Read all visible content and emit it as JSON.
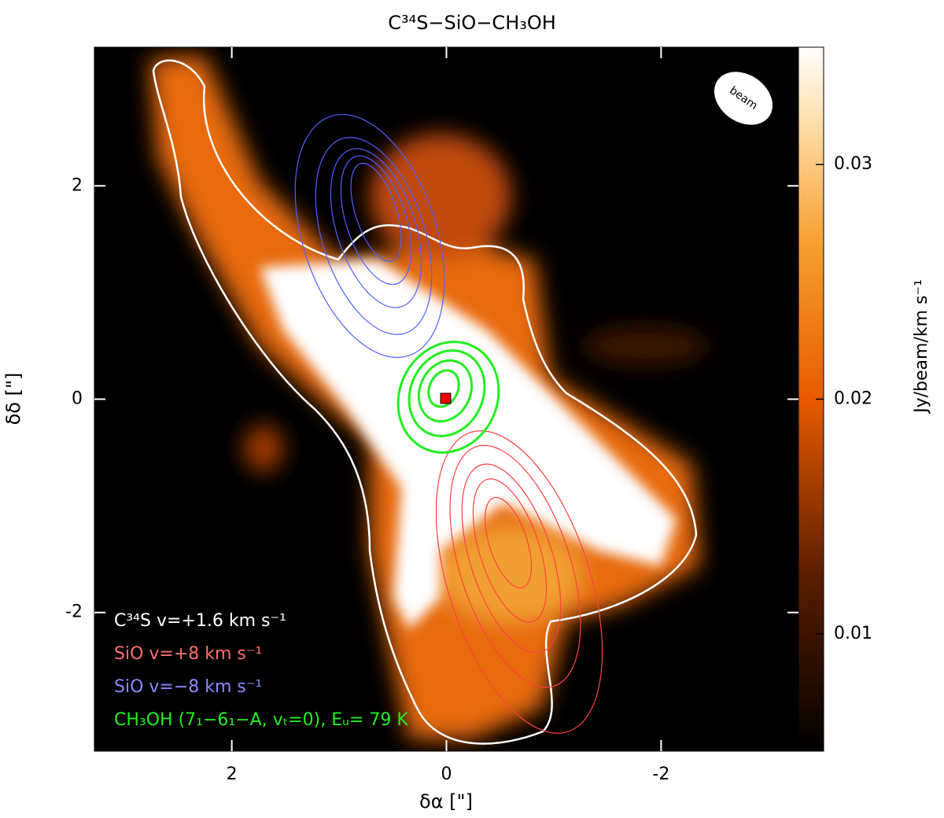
{
  "chart_data": {
    "type": "image",
    "title": "C³⁴S−SiO−CH₃OH",
    "x_label": "δα [\"]",
    "y_label": "δδ [\"]",
    "xlim": [
      3.28,
      -3.28
    ],
    "xticks": [
      2,
      0,
      -2
    ],
    "ylim": [
      -3.3,
      3.3
    ],
    "yticks": [
      -2,
      0,
      2
    ],
    "colorbar": {
      "label": "Jy/beam/km s⁻¹",
      "lim": [
        0.005,
        0.035
      ],
      "ticks": [
        0.01,
        0.02,
        0.03
      ]
    },
    "beam_label": "beam",
    "legend": [
      {
        "text": "C³⁴S  v=+1.6 km s⁻¹",
        "color": "#ffffff"
      },
      {
        "text": "SiO  v=+8 km s⁻¹",
        "color": "#ff7070"
      },
      {
        "text": "SiO  v=−8 km s⁻¹",
        "color": "#8a8aff"
      },
      {
        "text": "CH₃OH (7₁−6₁−A, vₜ=0), Eᵤ= 79 K",
        "color": "#22ee22"
      }
    ]
  }
}
